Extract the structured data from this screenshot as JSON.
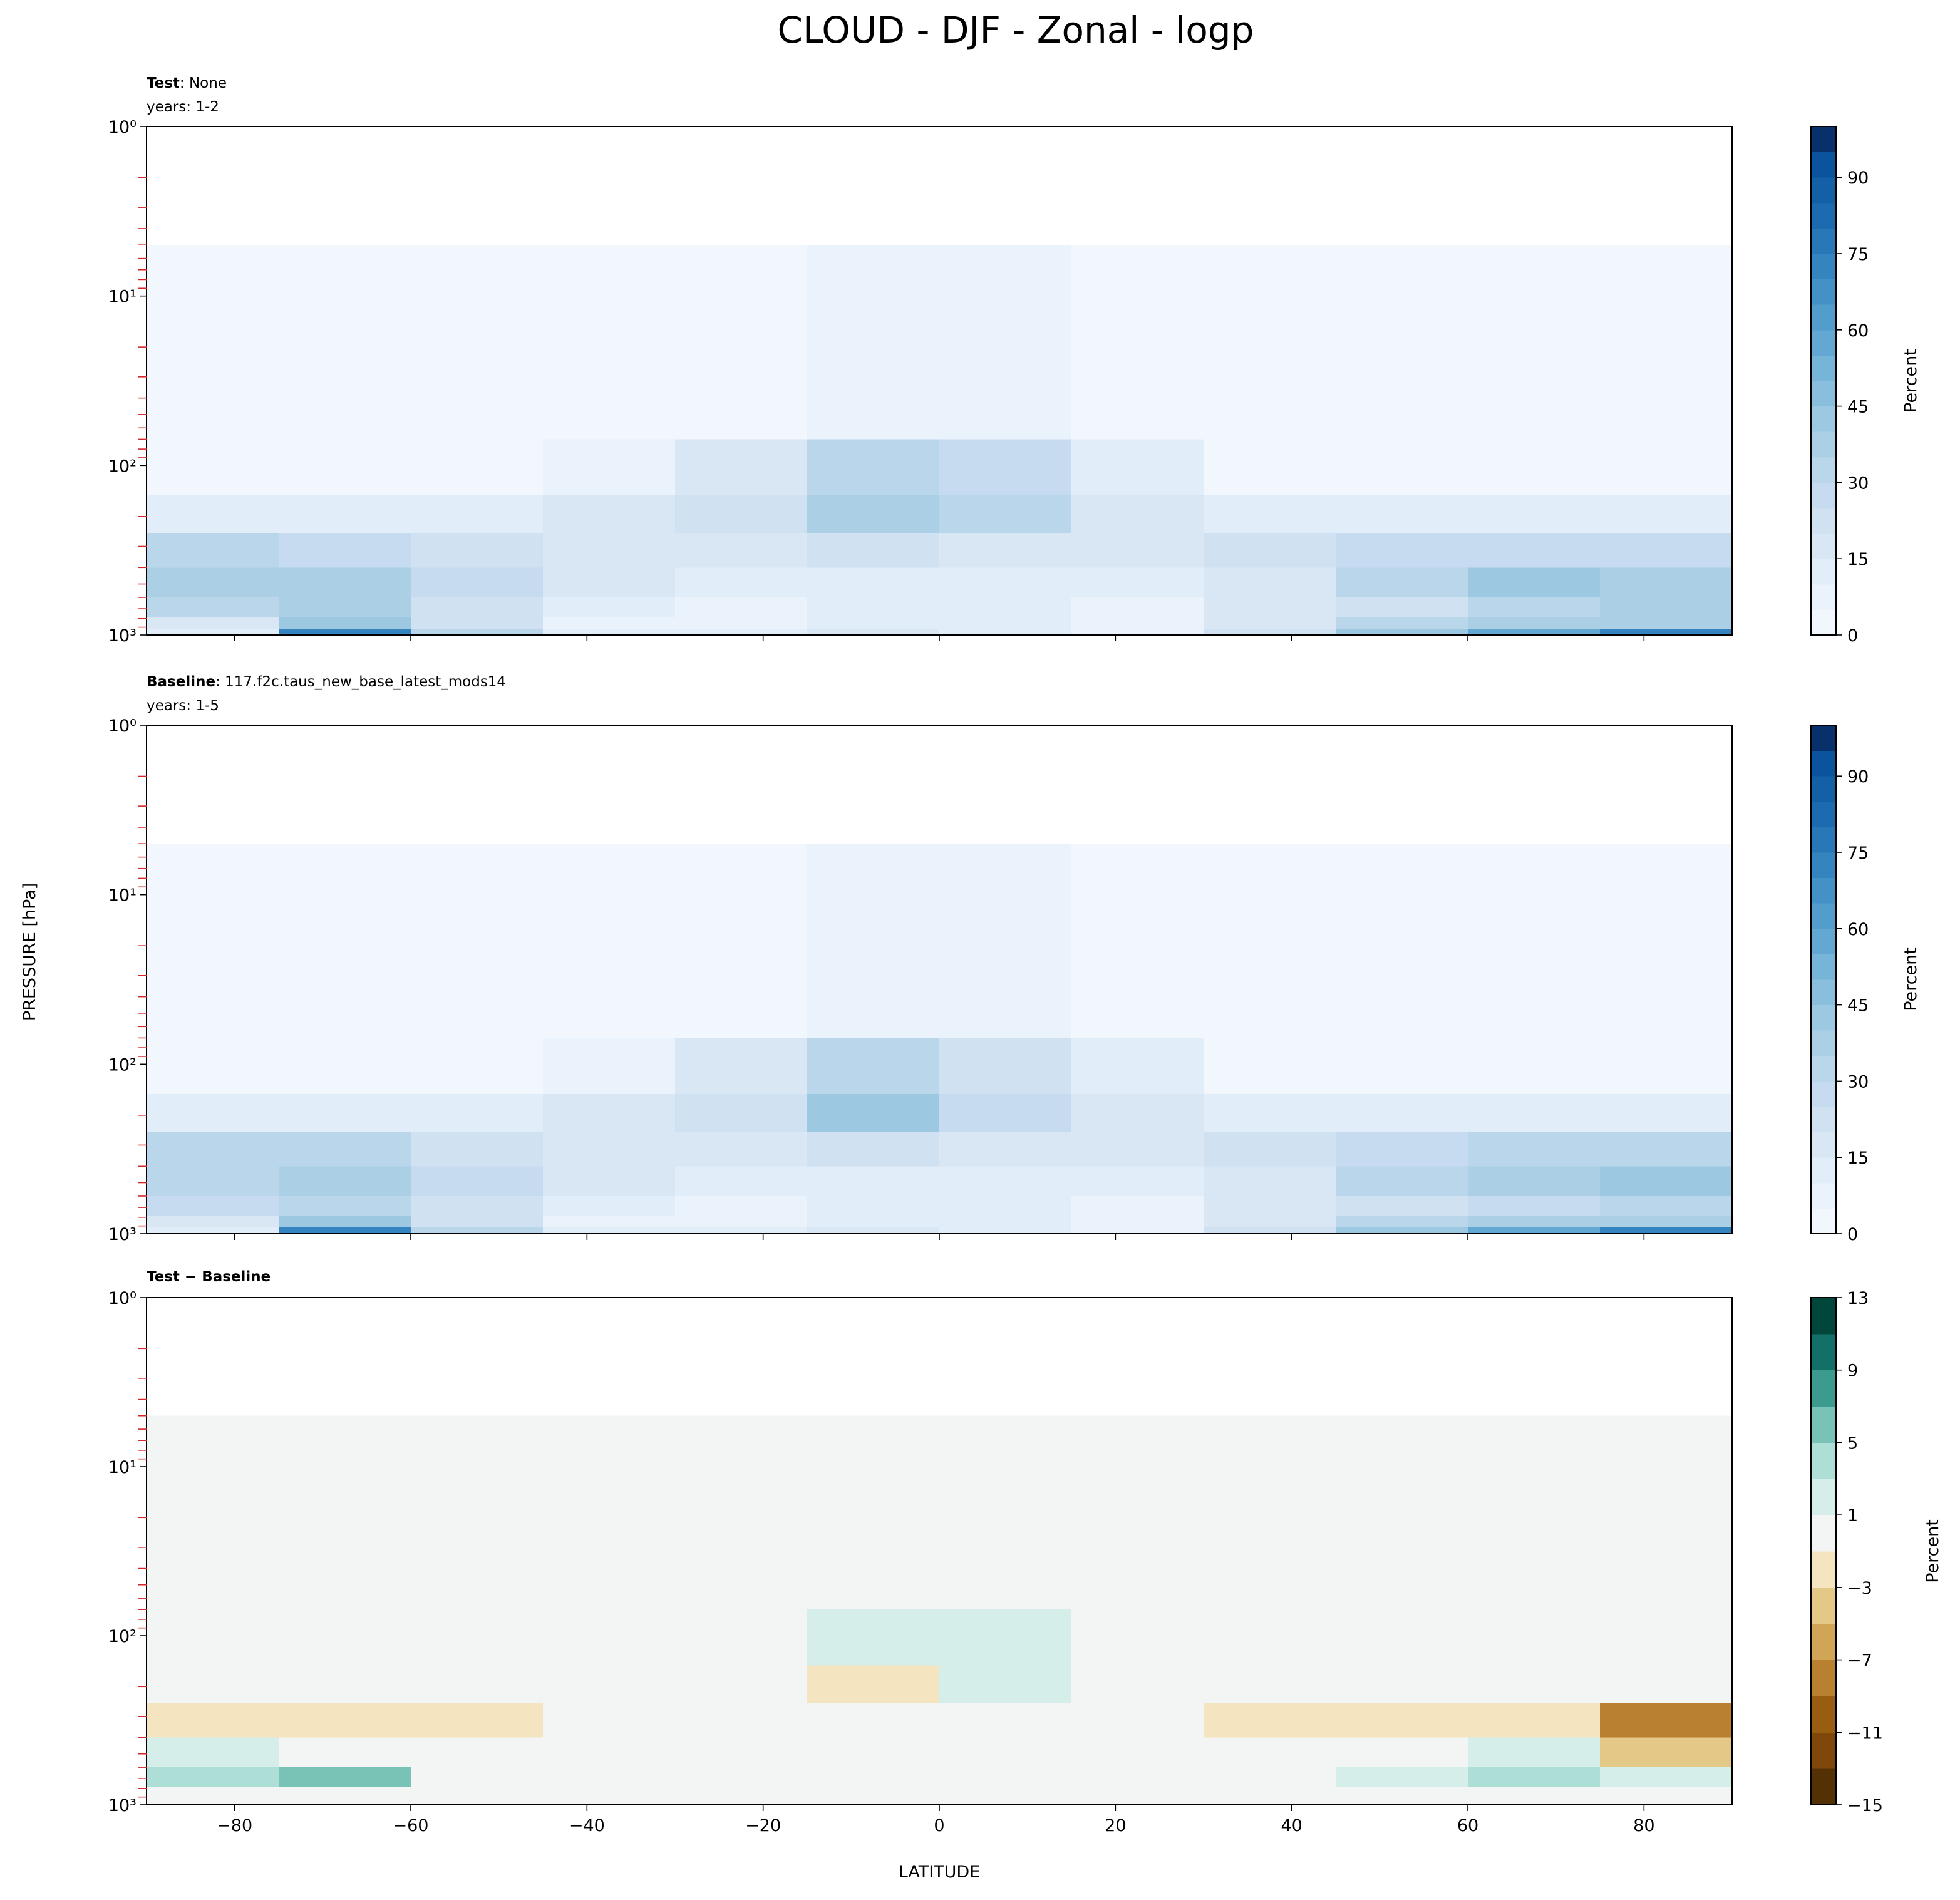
{
  "figure": {
    "title": "CLOUD - DJF - Zonal - logp",
    "xlabel": "LATITUDE",
    "ylabel": "PRESSURE [hPa]"
  },
  "chart_data": [
    {
      "type": "contour",
      "title_bold": "Test",
      "title": ": None",
      "subtitle": "years: 1-2",
      "xticklabels": false,
      "log_y": true,
      "xlim": [
        -90,
        90
      ],
      "ylim": [
        1000,
        1
      ],
      "xticks": [
        {
          "value": -80,
          "label": "−80"
        },
        {
          "value": -60,
          "label": "−60"
        },
        {
          "value": -40,
          "label": "−40"
        },
        {
          "value": -20,
          "label": "−20"
        },
        0,
        20,
        40,
        60,
        80
      ],
      "yticks": [
        {
          "value": 1,
          "label": "10⁰"
        },
        {
          "value": 10,
          "label": "10¹"
        },
        {
          "value": 100,
          "label": "10²"
        },
        {
          "value": 1000,
          "label": "10³"
        }
      ],
      "yminorticks": [
        2,
        3,
        4,
        5,
        6,
        7,
        8,
        9,
        20,
        30,
        40,
        50,
        60,
        70,
        80,
        90,
        200,
        300,
        400,
        500,
        600,
        700,
        800,
        900
      ],
      "lat_edges": [
        -90,
        -75,
        -60,
        -45,
        -30,
        -15,
        0,
        15,
        30,
        45,
        60,
        75,
        90
      ],
      "p_edges": [
        5,
        70,
        150,
        250,
        400,
        600,
        780,
        920,
        1000
      ],
      "values": [
        [
          2,
          2,
          2,
          2,
          4,
          7,
          7,
          4,
          2,
          2,
          2,
          2
        ],
        [
          3,
          3,
          4,
          6,
          18,
          32,
          25,
          10,
          4,
          4,
          4,
          4
        ],
        [
          10,
          10,
          12,
          16,
          22,
          38,
          30,
          16,
          12,
          12,
          12,
          12
        ],
        [
          30,
          28,
          22,
          18,
          18,
          22,
          18,
          15,
          20,
          25,
          28,
          25
        ],
        [
          35,
          38,
          25,
          18,
          14,
          12,
          12,
          12,
          18,
          30,
          40,
          36
        ],
        [
          30,
          36,
          22,
          12,
          8,
          10,
          10,
          8,
          15,
          22,
          32,
          36
        ],
        [
          15,
          40,
          20,
          8,
          5,
          12,
          12,
          5,
          15,
          30,
          35,
          35
        ],
        [
          10,
          70,
          30,
          10,
          10,
          15,
          12,
          8,
          20,
          40,
          55,
          70
        ]
      ],
      "clevels": [
        0,
        5,
        10,
        15,
        20,
        25,
        30,
        35,
        40,
        45,
        50,
        55,
        60,
        65,
        70,
        75,
        80,
        85,
        90,
        95,
        100
      ],
      "colors": [
        "#f2f7fd",
        "#eaf2fb",
        "#e1edf8",
        "#d9e7f5",
        "#d0e1f2",
        "#c6dbef",
        "#bad6eb",
        "#abd0e6",
        "#9cc9e1",
        "#89bfdd",
        "#76b4d8",
        "#63a8d3",
        "#529dcc",
        "#4391c6",
        "#3484bf",
        "#2878b8",
        "#1c6bb0",
        "#1360a7",
        "#0b539c",
        "#08306b"
      ],
      "cbar_ticks": [
        0,
        15,
        30,
        45,
        60,
        75,
        90
      ],
      "cbar_label": "Percent"
    },
    {
      "type": "contour",
      "title_bold": "Baseline",
      "title": ": 117.f2c.taus_new_base_latest_mods14",
      "subtitle": "years: 1-5",
      "xticklabels": false,
      "log_y": true,
      "xlim": [
        -90,
        90
      ],
      "ylim": [
        1000,
        1
      ],
      "xticks": [
        {
          "value": -80,
          "label": "−80"
        },
        {
          "value": -60,
          "label": "−60"
        },
        {
          "value": -40,
          "label": "−40"
        },
        {
          "value": -20,
          "label": "−20"
        },
        0,
        20,
        40,
        60,
        80
      ],
      "yticks": [
        {
          "value": 1,
          "label": "10⁰"
        },
        {
          "value": 10,
          "label": "10¹"
        },
        {
          "value": 100,
          "label": "10²"
        },
        {
          "value": 1000,
          "label": "10³"
        }
      ],
      "yminorticks": [
        2,
        3,
        4,
        5,
        6,
        7,
        8,
        9,
        20,
        30,
        40,
        50,
        60,
        70,
        80,
        90,
        200,
        300,
        400,
        500,
        600,
        700,
        800,
        900
      ],
      "lat_edges": [
        -90,
        -75,
        -60,
        -45,
        -30,
        -15,
        0,
        15,
        30,
        45,
        60,
        75,
        90
      ],
      "p_edges": [
        5,
        70,
        150,
        250,
        400,
        600,
        780,
        920,
        1000
      ],
      "values": [
        [
          2,
          2,
          2,
          2,
          4,
          7,
          7,
          4,
          2,
          2,
          2,
          2
        ],
        [
          3,
          3,
          4,
          6,
          18,
          30,
          23,
          10,
          4,
          4,
          4,
          4
        ],
        [
          10,
          10,
          12,
          16,
          22,
          41,
          28,
          16,
          12,
          12,
          12,
          12
        ],
        [
          33,
          31,
          24,
          18,
          18,
          22,
          18,
          15,
          22,
          28,
          30,
          33
        ],
        [
          34,
          38,
          25,
          18,
          14,
          12,
          12,
          12,
          18,
          30,
          38,
          40
        ],
        [
          27,
          31,
          22,
          12,
          8,
          10,
          10,
          8,
          15,
          20,
          28,
          34
        ],
        [
          15,
          40,
          20,
          8,
          5,
          12,
          12,
          5,
          15,
          30,
          35,
          35
        ],
        [
          10,
          70,
          30,
          10,
          10,
          15,
          12,
          8,
          20,
          40,
          55,
          70
        ]
      ],
      "clevels": [
        0,
        5,
        10,
        15,
        20,
        25,
        30,
        35,
        40,
        45,
        50,
        55,
        60,
        65,
        70,
        75,
        80,
        85,
        90,
        95,
        100
      ],
      "colors": [
        "#f2f7fd",
        "#eaf2fb",
        "#e1edf8",
        "#d9e7f5",
        "#d0e1f2",
        "#c6dbef",
        "#bad6eb",
        "#abd0e6",
        "#9cc9e1",
        "#89bfdd",
        "#76b4d8",
        "#63a8d3",
        "#529dcc",
        "#4391c6",
        "#3484bf",
        "#2878b8",
        "#1c6bb0",
        "#1360a7",
        "#0b539c",
        "#08306b"
      ],
      "cbar_ticks": [
        0,
        15,
        30,
        45,
        60,
        75,
        90
      ],
      "cbar_label": "Percent"
    },
    {
      "type": "contour",
      "title_bold": "Test − Baseline",
      "xticklabels": true,
      "log_y": true,
      "xlim": [
        -90,
        90
      ],
      "ylim": [
        1000,
        1
      ],
      "xticks": [
        {
          "value": -80,
          "label": "−80"
        },
        {
          "value": -60,
          "label": "−60"
        },
        {
          "value": -40,
          "label": "−40"
        },
        {
          "value": -20,
          "label": "−20"
        },
        0,
        20,
        40,
        60,
        80
      ],
      "yticks": [
        {
          "value": 1,
          "label": "10⁰"
        },
        {
          "value": 10,
          "label": "10¹"
        },
        {
          "value": 100,
          "label": "10²"
        },
        {
          "value": 1000,
          "label": "10³"
        }
      ],
      "yminorticks": [
        2,
        3,
        4,
        5,
        6,
        7,
        8,
        9,
        20,
        30,
        40,
        50,
        60,
        70,
        80,
        90,
        200,
        300,
        400,
        500,
        600,
        700,
        800,
        900
      ],
      "lat_edges": [
        -90,
        -75,
        -60,
        -45,
        -30,
        -15,
        0,
        15,
        30,
        45,
        60,
        75,
        90
      ],
      "p_edges": [
        5,
        70,
        150,
        250,
        400,
        600,
        780,
        920,
        1000
      ],
      "values": [
        [
          0,
          0,
          0,
          0,
          0,
          0,
          0,
          0,
          0,
          0,
          0,
          0
        ],
        [
          0,
          0,
          0,
          0,
          0,
          2,
          2,
          0,
          0,
          0,
          0,
          0
        ],
        [
          0,
          0,
          0,
          0,
          0,
          -3,
          2,
          0,
          0,
          0,
          0,
          0
        ],
        [
          -3,
          -3,
          -2,
          0,
          0,
          0,
          0,
          0,
          -2,
          -3,
          -2,
          -8
        ],
        [
          1,
          0,
          0,
          0,
          0,
          0,
          0,
          0,
          0,
          0,
          2,
          -4
        ],
        [
          3,
          5,
          0,
          0,
          0,
          0,
          0,
          0,
          0,
          2,
          4,
          2
        ],
        [
          0,
          0,
          0,
          0,
          0,
          0,
          0,
          0,
          0,
          0,
          0,
          0
        ],
        [
          0,
          0,
          0,
          0,
          0,
          0,
          0,
          0,
          0,
          0,
          0,
          0
        ]
      ],
      "clevels": [
        -15,
        -13,
        -11,
        -9,
        -7,
        -5,
        -3,
        -1,
        1,
        3,
        5,
        7,
        9,
        11,
        13
      ],
      "colors": [
        "#543005",
        "#7f470a",
        "#995d12",
        "#b9802f",
        "#d0a656",
        "#e3c888",
        "#f4e5c0",
        "#f3f5f4",
        "#d5eeea",
        "#addfd6",
        "#78c3b6",
        "#3c9b8f",
        "#137068",
        "#01463a"
      ],
      "cbar_ticks": [
        {
          "value": -15,
          "label": "−15"
        },
        {
          "value": -11,
          "label": "−11"
        },
        {
          "value": -7,
          "label": "−7"
        },
        {
          "value": -3,
          "label": "−3"
        },
        1,
        5,
        9,
        13
      ],
      "cbar_label": "Percent"
    }
  ]
}
